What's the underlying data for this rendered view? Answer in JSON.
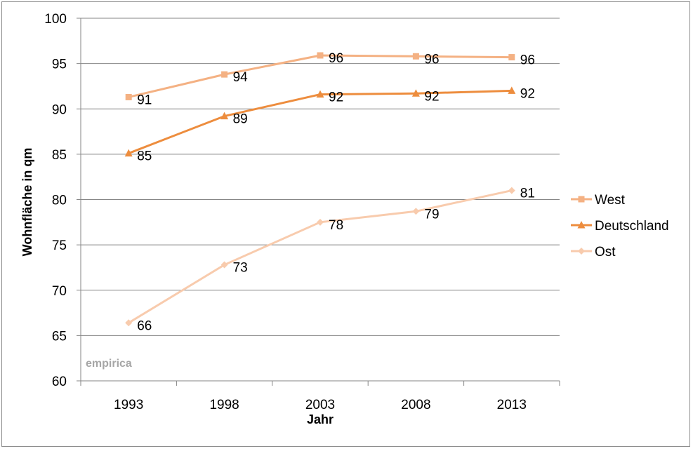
{
  "chart_data": {
    "type": "line",
    "x": [
      "1993",
      "1998",
      "2003",
      "2008",
      "2013"
    ],
    "series": [
      {
        "name": "West",
        "values": [
          91.3,
          93.8,
          95.9,
          95.8,
          95.7
        ],
        "labels": [
          "91",
          "94",
          "96",
          "96",
          "96"
        ],
        "color": "#f4b183",
        "marker": "square"
      },
      {
        "name": "Deutschland",
        "values": [
          85.1,
          89.2,
          91.6,
          91.7,
          92.0
        ],
        "labels": [
          "85",
          "89",
          "92",
          "92",
          "92"
        ],
        "color": "#ed8d3e",
        "marker": "triangle"
      },
      {
        "name": "Ost",
        "values": [
          66.4,
          72.8,
          77.5,
          78.7,
          81.0
        ],
        "labels": [
          "66",
          "73",
          "78",
          "79",
          "81"
        ],
        "color": "#f8cbad",
        "marker": "diamond"
      }
    ],
    "xlabel": "Jahr",
    "ylabel": "Wohnfläche in qm",
    "ylim": [
      60,
      100
    ],
    "yticks": [
      60,
      65,
      70,
      75,
      80,
      85,
      90,
      95,
      100
    ],
    "grid": true,
    "legend_position": "right",
    "watermark": "empirica"
  }
}
